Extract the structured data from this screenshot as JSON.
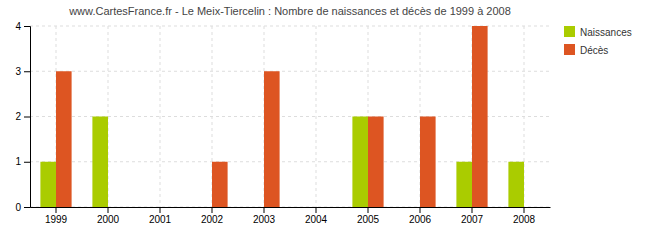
{
  "chart_data": {
    "type": "bar",
    "title": "www.CartesFrance.fr - Le Meix-Tiercelin : Nombre de naissances et décès de 1999 à 2008",
    "categories": [
      "1999",
      "2000",
      "2001",
      "2002",
      "2003",
      "2004",
      "2005",
      "2006",
      "2007",
      "2008"
    ],
    "series": [
      {
        "name": "Naissances",
        "color": "#aacc00",
        "values": [
          1,
          2,
          0,
          0,
          0,
          0,
          2,
          0,
          1,
          1
        ]
      },
      {
        "name": "Décès",
        "color": "#dd5522",
        "values": [
          3,
          0,
          0,
          1,
          3,
          0,
          2,
          2,
          4,
          0
        ]
      }
    ],
    "ylim": [
      0,
      4
    ],
    "yticks": [
      0,
      1,
      2,
      3,
      4
    ],
    "grid": true,
    "legend": "upper right"
  }
}
